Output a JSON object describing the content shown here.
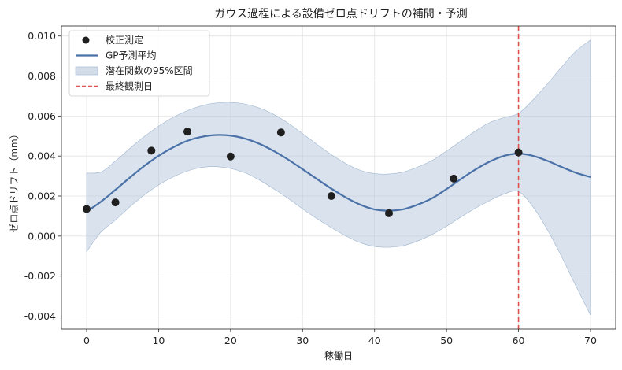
{
  "chart_data": {
    "type": "line",
    "title": "ガウス過程による設備ゼロ点ドリフトの補間・予測",
    "xlabel": "稼働日",
    "ylabel": "ゼロ点ドリフト（mm）",
    "xlim": [
      -3.5,
      73.5
    ],
    "ylim": [
      -0.00465,
      0.0105
    ],
    "x_ticks": [
      0,
      10,
      20,
      30,
      40,
      50,
      60,
      70
    ],
    "x_tick_labels": [
      "0",
      "10",
      "20",
      "30",
      "40",
      "50",
      "60",
      "70"
    ],
    "y_ticks": [
      -0.004,
      -0.002,
      0.0,
      0.002,
      0.004,
      0.006,
      0.008,
      0.01
    ],
    "y_tick_labels": [
      "-0.004",
      "-0.002",
      "0.000",
      "0.002",
      "0.004",
      "0.006",
      "0.008",
      "0.010"
    ],
    "grid": true,
    "legend_position": "top-left",
    "legend": [
      {
        "label": "校正測定",
        "kind": "marker"
      },
      {
        "label": "GP予測平均",
        "kind": "line"
      },
      {
        "label": "潜在関数の95%区間",
        "kind": "band"
      },
      {
        "label": "最終観測日",
        "kind": "dashed"
      }
    ],
    "series": [
      {
        "name": "校正測定",
        "kind": "scatter",
        "color": "#1f1f1f",
        "x": [
          0,
          4,
          9,
          14,
          20,
          27,
          34,
          42,
          51,
          60
        ],
        "y": [
          0.00135,
          0.00168,
          0.00427,
          0.00522,
          0.00398,
          0.00518,
          0.002,
          0.00114,
          0.00287,
          0.00418
        ]
      },
      {
        "name": "GP予測平均",
        "kind": "line",
        "color": "#4a72a8",
        "x": [
          0,
          2,
          4,
          6,
          8,
          10,
          12,
          14,
          16,
          18,
          20,
          22,
          24,
          26,
          28,
          30,
          32,
          34,
          36,
          38,
          40,
          42,
          44,
          46,
          48,
          50,
          52,
          54,
          56,
          58,
          60,
          62,
          64,
          66,
          68,
          70
        ],
        "y": [
          0.00122,
          0.00172,
          0.00231,
          0.00292,
          0.0035,
          0.00401,
          0.00443,
          0.00476,
          0.00496,
          0.00505,
          0.00502,
          0.00487,
          0.00461,
          0.00425,
          0.00382,
          0.00334,
          0.00285,
          0.00237,
          0.00193,
          0.00157,
          0.00133,
          0.00127,
          0.00134,
          0.00157,
          0.00189,
          0.00235,
          0.00285,
          0.00332,
          0.00372,
          0.00401,
          0.00412,
          0.00401,
          0.00376,
          0.00345,
          0.00316,
          0.00295
        ]
      },
      {
        "name": "潜在関数の95%区間",
        "kind": "band",
        "color": "#a9bdd6",
        "x": [
          0,
          2,
          4,
          6,
          8,
          10,
          12,
          14,
          16,
          18,
          20,
          22,
          24,
          26,
          28,
          30,
          32,
          34,
          36,
          38,
          40,
          42,
          44,
          46,
          48,
          50,
          52,
          54,
          56,
          58,
          60,
          62,
          64,
          66,
          68,
          70
        ],
        "upper": [
          0.00315,
          0.0032,
          0.00375,
          0.00438,
          0.00497,
          0.00549,
          0.00593,
          0.00627,
          0.00651,
          0.00665,
          0.00668,
          0.0066,
          0.0064,
          0.00608,
          0.00564,
          0.00512,
          0.00458,
          0.00407,
          0.00363,
          0.00329,
          0.00312,
          0.0031,
          0.0032,
          0.00345,
          0.00378,
          0.00425,
          0.00475,
          0.00525,
          0.00567,
          0.00592,
          0.00613,
          0.0068,
          0.0076,
          0.00845,
          0.00925,
          0.0098
        ],
        "lower": [
          -0.00078,
          0.0002,
          0.0008,
          0.00146,
          0.00205,
          0.00255,
          0.00295,
          0.00325,
          0.00343,
          0.00347,
          0.00338,
          0.00316,
          0.0028,
          0.00236,
          0.00188,
          0.00136,
          0.00087,
          0.00042,
          1e-05,
          -0.00033,
          -0.00052,
          -0.00056,
          -0.00048,
          -0.00025,
          8e-05,
          0.00049,
          0.00095,
          0.00139,
          0.00177,
          0.0021,
          0.00222,
          0.00146,
          0.00032,
          -0.00104,
          -0.00252,
          -0.00395
        ]
      },
      {
        "name": "最終観測日",
        "kind": "vline",
        "color": "#e0504a",
        "x": 60
      }
    ]
  }
}
